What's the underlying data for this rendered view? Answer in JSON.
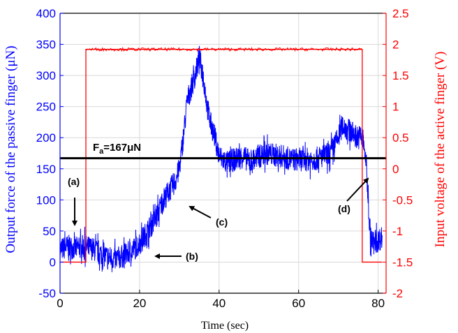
{
  "chart_data": {
    "type": "line",
    "xlabel": "Time (sec)",
    "ylabel_left": "Output force of the passive finger (μN)",
    "ylabel_right": "Input voltage of the active finger (V)",
    "xlim": [
      0,
      82
    ],
    "ylim_left": [
      -50,
      400
    ],
    "ylim_right": [
      -2,
      2.5
    ],
    "xticks": [
      "0",
      "20",
      "40",
      "60",
      "80"
    ],
    "yticks_left": [
      "-50",
      "0",
      "50",
      "100",
      "150",
      "200",
      "250",
      "300",
      "350",
      "400"
    ],
    "yticks_right": [
      "-2",
      "-1.5",
      "-1",
      "-0.5",
      "0",
      "0.5",
      "1",
      "1.5",
      "2",
      "2.5"
    ],
    "grid": true,
    "colors": {
      "force": "#0000ff",
      "voltage": "#ff0000",
      "reference": "#000000",
      "grid": "#d9d9d9"
    },
    "reference_line": {
      "value": 167,
      "label_main": "F",
      "label_sub": "a",
      "label_rest": "=167μN"
    },
    "series": [
      {
        "axis": "left",
        "color": "#0000ff",
        "noise": 12,
        "x": [
          0,
          2,
          4,
          6,
          8,
          10,
          12,
          14,
          16,
          18,
          20,
          22,
          24,
          26,
          28,
          29,
          30,
          31,
          32,
          33,
          34,
          35,
          36,
          37,
          38,
          39,
          40,
          42,
          44,
          46,
          48,
          50,
          52,
          54,
          56,
          58,
          60,
          62,
          64,
          66,
          68,
          70,
          71,
          72,
          73,
          74,
          75,
          76,
          77,
          78,
          79,
          80,
          81
        ],
        "values": [
          20,
          25,
          22,
          25,
          22,
          15,
          8,
          5,
          10,
          18,
          30,
          50,
          70,
          100,
          120,
          130,
          150,
          200,
          260,
          280,
          300,
          330,
          300,
          250,
          220,
          200,
          170,
          160,
          165,
          170,
          160,
          170,
          175,
          172,
          170,
          165,
          165,
          165,
          165,
          170,
          175,
          200,
          220,
          215,
          210,
          205,
          200,
          205,
          160,
          40,
          30,
          35,
          40
        ]
      },
      {
        "axis": "right",
        "color": "#ff0000",
        "step": true,
        "x": [
          0,
          6.5,
          6.5,
          76,
          76,
          81
        ],
        "values": [
          -1.5,
          -1.5,
          1.92,
          1.92,
          -1.5,
          -1.5
        ]
      }
    ],
    "annotations": [
      {
        "label": "(a)",
        "x": 3.5,
        "y": 28
      },
      {
        "label": "(b)",
        "x": 21.5,
        "y": 5
      },
      {
        "label": "(c)",
        "x": 29,
        "y": 88
      },
      {
        "label": "(d)",
        "x": 76,
        "y": 186
      }
    ]
  }
}
